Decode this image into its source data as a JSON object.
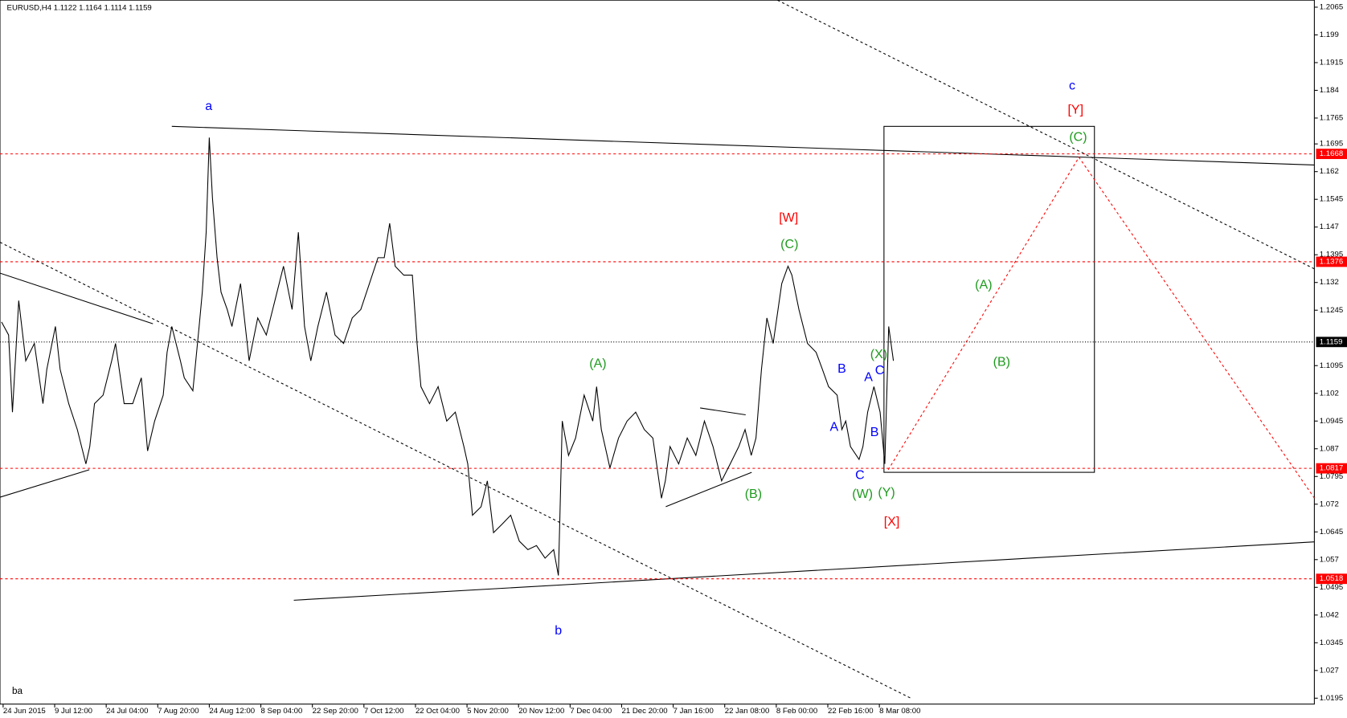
{
  "chart_data": {
    "type": "line",
    "title": "EURUSD,H4  1.1122 1.1164 1.1114 1.1159",
    "footer": "ba",
    "x": [
      -2,
      7,
      12,
      20,
      29,
      40,
      51,
      56,
      67,
      73,
      84,
      95,
      106,
      111,
      117,
      128,
      139,
      144,
      155,
      166,
      177,
      185,
      194,
      205,
      210,
      216,
      227,
      232,
      243,
      251,
      255,
      260,
      264,
      268,
      274,
      279,
      287,
      293,
      304,
      315,
      326,
      337,
      348,
      359,
      370,
      378,
      386,
      394,
      403,
      414,
      425,
      436,
      447,
      458,
      469,
      480,
      488,
      495,
      502,
      513,
      524,
      530,
      535,
      546,
      557,
      568,
      579,
      590,
      595,
      601,
      612,
      620,
      628,
      639,
      650,
      661,
      672,
      683,
      694,
      705,
      711,
      713,
      716,
      724,
      733,
      744,
      755,
      760,
      766,
      777,
      788,
      799,
      810,
      821,
      832,
      843,
      848,
      854,
      865,
      876,
      887,
      898,
      909,
      920,
      931,
      942,
      950,
      958,
      964,
      971,
      978,
      986,
      997,
      1005,
      1010,
      1019,
      1030,
      1041,
      1049,
      1057,
      1068,
      1074,
      1079,
      1085,
      1096,
      1101,
      1107,
      1115,
      1123,
      1129,
      1134,
      1140
    ],
    "series": [
      {
        "color": "#000000",
        "values": [
          1.1213,
          1.1178,
          1.0969,
          1.1271,
          1.1108,
          1.1155,
          1.0992,
          1.1085,
          1.1201,
          1.1085,
          1.0992,
          1.0922,
          1.0829,
          1.0876,
          1.0992,
          1.1015,
          1.1108,
          1.1155,
          1.0992,
          1.0992,
          1.1062,
          1.0864,
          1.0945,
          1.1015,
          1.1131,
          1.1201,
          1.1108,
          1.1062,
          1.1027,
          1.1201,
          1.1294,
          1.1456,
          1.1712,
          1.1549,
          1.1387,
          1.1294,
          1.1247,
          1.1201,
          1.1317,
          1.1108,
          1.1224,
          1.1178,
          1.1271,
          1.1364,
          1.1247,
          1.1456,
          1.1201,
          1.1108,
          1.1201,
          1.1294,
          1.1178,
          1.1155,
          1.1224,
          1.1247,
          1.1317,
          1.1387,
          1.1387,
          1.148,
          1.1364,
          1.134,
          1.134,
          1.1155,
          1.1038,
          1.0992,
          1.1038,
          1.0945,
          1.0969,
          1.0876,
          1.0829,
          1.069,
          1.0713,
          1.0783,
          1.0643,
          1.0666,
          1.069,
          1.062,
          1.0597,
          1.0608,
          1.0574,
          1.0597,
          1.0527,
          1.069,
          1.0945,
          1.0852,
          1.0899,
          1.1015,
          1.0945,
          1.1038,
          1.0922,
          1.0818,
          1.0899,
          1.0945,
          1.0969,
          1.0922,
          1.0899,
          1.0736,
          1.0783,
          1.0876,
          1.0829,
          1.0899,
          1.0852,
          1.0945,
          1.0876,
          1.0783,
          1.0829,
          1.0876,
          1.0922,
          1.0852,
          1.0899,
          1.1085,
          1.1224,
          1.1155,
          1.1317,
          1.1364,
          1.134,
          1.1247,
          1.1155,
          1.1131,
          1.1085,
          1.1038,
          1.1015,
          1.0922,
          1.0945,
          1.0876,
          1.0841,
          1.0876,
          1.0969,
          1.1038,
          1.0969,
          1.0829,
          1.1201,
          1.1108
        ]
      }
    ],
    "xlim": [
      -4,
      1679
    ],
    "xticks": [
      {
        "value": 0,
        "label": "24 Jun 2015"
      },
      {
        "value": 66,
        "label": "9 Jul 12:00"
      },
      {
        "value": 132,
        "label": "24 Jul 04:00"
      },
      {
        "value": 198,
        "label": "7 Aug 20:00"
      },
      {
        "value": 264,
        "label": "24 Aug 12:00"
      },
      {
        "value": 330,
        "label": "8 Sep 04:00"
      },
      {
        "value": 396,
        "label": "22 Sep 20:00"
      },
      {
        "value": 462,
        "label": "7 Oct 12:00"
      },
      {
        "value": 528,
        "label": "22 Oct 04:00"
      },
      {
        "value": 594,
        "label": "5 Nov 20:00"
      },
      {
        "value": 660,
        "label": "20 Nov 12:00"
      },
      {
        "value": 726,
        "label": "7 Dec 04:00"
      },
      {
        "value": 792,
        "label": "21 Dec 20:00"
      },
      {
        "value": 858,
        "label": "7 Jan 16:00"
      },
      {
        "value": 924,
        "label": "22 Jan 08:00"
      },
      {
        "value": 990,
        "label": "8 Feb 00:00"
      },
      {
        "value": 1056,
        "label": "22 Feb 16:00"
      },
      {
        "value": 1122,
        "label": "8 Mar 08:00"
      }
    ],
    "ylim": [
      1.0179,
      1.2084
    ],
    "yticks": [
      1.0195,
      1.027,
      1.0345,
      1.042,
      1.0495,
      1.057,
      1.0645,
      1.072,
      1.0795,
      1.087,
      1.0945,
      1.102,
      1.1095,
      1.1245,
      1.132,
      1.1395,
      1.147,
      1.1545,
      1.162,
      1.1695,
      1.1765,
      1.184,
      1.1915,
      1.199,
      1.2065
    ],
    "levels": [
      1.1668,
      1.1376,
      1.0817,
      1.0518
    ],
    "current": 1.1159,
    "annotations": [
      "a",
      "b",
      "c",
      "[Y]",
      "(C)",
      "[W]",
      "(C)",
      "(A)",
      "(B)",
      "(W)",
      "(Y)",
      "[X]",
      "(X)",
      "A",
      "B",
      "C",
      "A",
      "B",
      "C",
      "(A)",
      "(B)"
    ]
  }
}
